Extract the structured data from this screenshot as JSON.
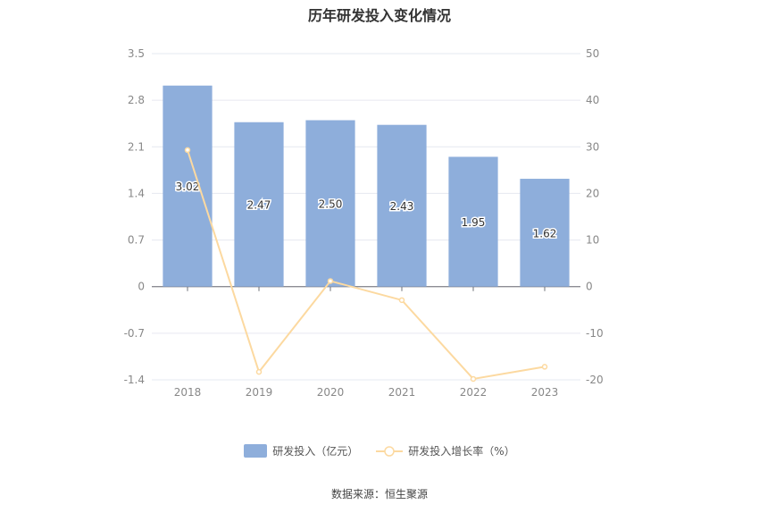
{
  "chart_data": {
    "type": "bar",
    "title": "历年研发投入变化情况",
    "categories": [
      "2018",
      "2019",
      "2020",
      "2021",
      "2022",
      "2023"
    ],
    "series": [
      {
        "name": "研发投入（亿元）",
        "type": "bar",
        "axis": "left",
        "values": [
          3.02,
          2.47,
          2.5,
          2.43,
          1.95,
          1.62
        ],
        "color": "#8eaedb"
      },
      {
        "name": "研发投入增长率（%）",
        "type": "line",
        "axis": "right",
        "values": [
          29.3,
          -18.3,
          1.2,
          -2.9,
          -19.8,
          -17.2
        ],
        "color": "#fcd9a0"
      }
    ],
    "y_left": {
      "ticks": [
        "3.5",
        "2.8",
        "2.1",
        "1.4",
        "0.7",
        "0",
        "-0.7",
        "-1.4"
      ],
      "min": -1.4,
      "max": 3.5
    },
    "y_right": {
      "ticks": [
        "50",
        "40",
        "30",
        "20",
        "10",
        "0",
        "-10",
        "-20"
      ],
      "min": -20,
      "max": 50
    },
    "grid": true,
    "legend_position": "bottom"
  },
  "source": "数据来源：恒生聚源"
}
